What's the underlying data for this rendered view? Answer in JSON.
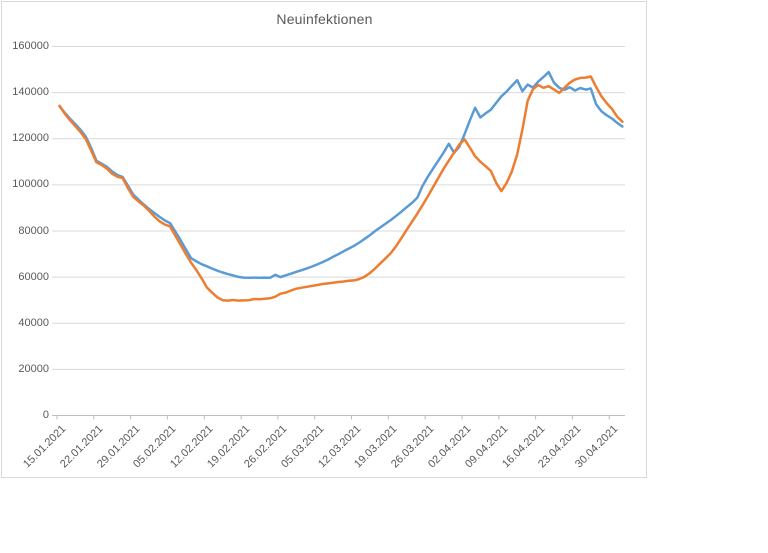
{
  "chart": {
    "title": "Neuinfektionen",
    "colors": {
      "series_blue": "#5B9BD5",
      "series_orange": "#ED7D31",
      "gridline": "#d9d9d9",
      "axis_line": "#bfbfbf",
      "tick_mark": "#bfbfbf",
      "text": "#595959",
      "chart_border": "#d9d9d9",
      "background": "#ffffff"
    }
  },
  "chart_data": {
    "type": "line",
    "title": "Neuinfektionen",
    "n_points": 108,
    "x_start_label": "15.01.2021",
    "x_tick_labels": [
      "15.01.2021",
      "22.01.2021",
      "29.01.2021",
      "05.02.2021",
      "12.02.2021",
      "19.02.2021",
      "26.02.2021",
      "05.03.2021",
      "12.03.2021",
      "19.03.2021",
      "26.03.2021",
      "02.04.2021",
      "09.04.2021",
      "16.04.2021",
      "23.04.2021",
      "30.04.2021"
    ],
    "x_tick_every_n_points": 7,
    "y_ticks": [
      0,
      20000,
      40000,
      60000,
      80000,
      100000,
      120000,
      140000,
      160000
    ],
    "y_tick_labels": [
      "0",
      "20000",
      "40000",
      "60000",
      "80000",
      "100000",
      "120000",
      "140000",
      "160000"
    ],
    "ylim": [
      0,
      160000
    ],
    "grid": true,
    "legend": "none",
    "series": [
      {
        "name": "blue",
        "color": "#5B9BD5",
        "values": [
          134000,
          131200,
          128700,
          126300,
          123800,
          120800,
          116000,
          110500,
          109200,
          107800,
          105800,
          104300,
          103400,
          99600,
          95800,
          93600,
          91500,
          89600,
          87800,
          86100,
          84600,
          83400,
          79800,
          76000,
          72000,
          68200,
          66800,
          65600,
          64700,
          63700,
          62800,
          62000,
          61300,
          60700,
          60100,
          59800,
          59700,
          59800,
          59700,
          59800,
          59700,
          61000,
          60000,
          60800,
          61500,
          62300,
          63000,
          63800,
          64600,
          65500,
          66500,
          67600,
          68800,
          70000,
          71200,
          72400,
          73600,
          75000,
          76600,
          78200,
          80000,
          81600,
          83200,
          84800,
          86600,
          88400,
          90300,
          92200,
          94500,
          99500,
          103500,
          107000,
          110500,
          114000,
          117800,
          113900,
          116500,
          122000,
          128000,
          133400,
          129200,
          131000,
          132600,
          135500,
          138400,
          140500,
          143000,
          145400,
          140600,
          143500,
          142200,
          144800,
          146800,
          148900,
          144300,
          142100,
          141200,
          142300,
          140900,
          142000,
          141300,
          141800,
          135000,
          132000,
          130200,
          128800,
          126900,
          125300
        ]
      },
      {
        "name": "orange",
        "color": "#ED7D31",
        "values": [
          134300,
          130800,
          128000,
          125400,
          122800,
          119800,
          114800,
          109800,
          108600,
          107000,
          104800,
          103500,
          103000,
          98500,
          94800,
          92800,
          91000,
          88800,
          86300,
          84200,
          82800,
          82000,
          78000,
          74000,
          70000,
          66300,
          63000,
          59500,
          55500,
          53300,
          51200,
          50000,
          49800,
          50100,
          49800,
          49900,
          50000,
          50500,
          50400,
          50600,
          50800,
          51500,
          52800,
          53300,
          54200,
          55000,
          55400,
          55800,
          56200,
          56600,
          57000,
          57300,
          57600,
          57900,
          58100,
          58400,
          58600,
          59200,
          60200,
          61800,
          63800,
          66000,
          68200,
          70500,
          73500,
          77000,
          80500,
          84000,
          87500,
          91200,
          95000,
          99000,
          103000,
          107000,
          110500,
          114000,
          117500,
          119700,
          116100,
          112400,
          110000,
          108100,
          106000,
          100900,
          97300,
          100900,
          105900,
          113200,
          124000,
          136500,
          141500,
          143300,
          142100,
          142800,
          141300,
          139900,
          142100,
          144300,
          145700,
          146400,
          146500,
          147000,
          142500,
          138500,
          135500,
          133000,
          129600,
          127400
        ]
      }
    ]
  }
}
